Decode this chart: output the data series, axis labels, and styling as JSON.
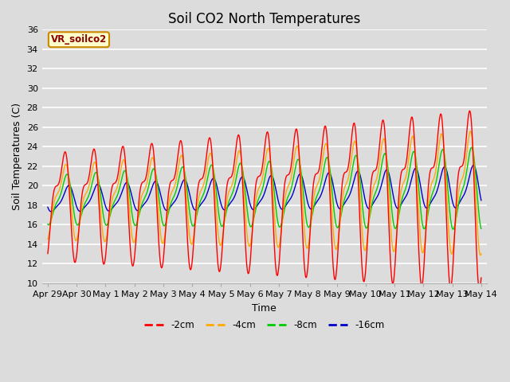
{
  "title": "Soil CO2 North Temperatures",
  "ylabel": "Soil Temperatures (C)",
  "xlabel": "Time",
  "annotation": "VR_soilco2",
  "ylim": [
    10,
    36
  ],
  "yticks": [
    10,
    12,
    14,
    16,
    18,
    20,
    22,
    24,
    26,
    28,
    30,
    32,
    34,
    36
  ],
  "background_color": "#dcdcdc",
  "colors": {
    "-2cm": "#ff0000",
    "-4cm": "#ffaa00",
    "-8cm": "#00cc00",
    "-16cm": "#0000cc"
  },
  "x_tick_labels": [
    "Apr 29",
    "Apr 30",
    "May 1",
    "May 2",
    "May 3",
    "May 4",
    "May 5",
    "May 6",
    "May 7",
    "May 8",
    "May 9",
    "May 10",
    "May 11",
    "May 12",
    "May 13",
    "May 14"
  ],
  "title_fontsize": 12,
  "label_fontsize": 9,
  "tick_fontsize": 8
}
